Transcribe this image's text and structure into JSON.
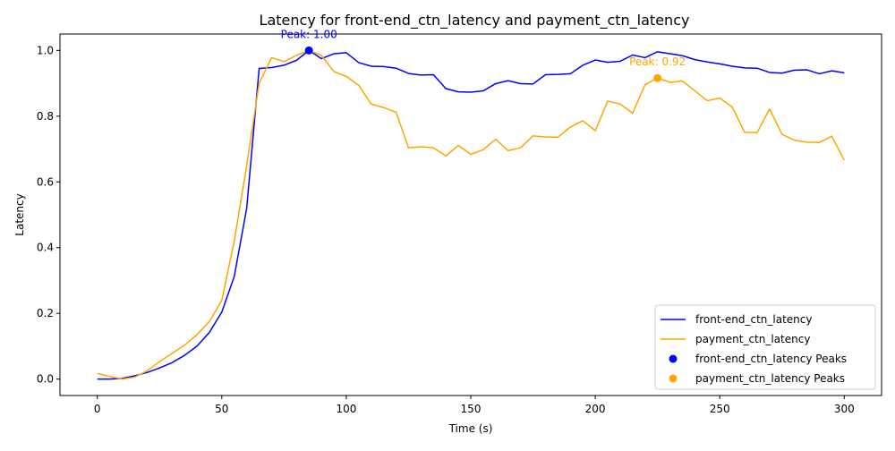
{
  "chart_data": {
    "type": "line",
    "title": "Latency for front-end_ctn_latency and payment_ctn_latency",
    "xlabel": "Time (s)",
    "ylabel": "Latency",
    "xlim": [
      -15,
      315
    ],
    "ylim": [
      -0.05,
      1.05
    ],
    "xticks": [
      0,
      50,
      100,
      150,
      200,
      250,
      300
    ],
    "yticks": [
      0.0,
      0.2,
      0.4,
      0.6,
      0.8,
      1.0
    ],
    "xtick_labels": [
      "0",
      "50",
      "100",
      "150",
      "200",
      "250",
      "300"
    ],
    "ytick_labels": [
      "0.0",
      "0.2",
      "0.4",
      "0.6",
      "0.8",
      "1.0"
    ],
    "legend_position": "lower-right",
    "x": [
      0,
      5,
      10,
      15,
      20,
      25,
      30,
      35,
      40,
      45,
      50,
      55,
      60,
      65,
      70,
      75,
      80,
      85,
      90,
      95,
      100,
      105,
      110,
      115,
      120,
      125,
      130,
      135,
      140,
      145,
      150,
      155,
      160,
      165,
      170,
      175,
      180,
      185,
      190,
      195,
      200,
      205,
      210,
      215,
      220,
      225,
      230,
      235,
      240,
      245,
      250,
      255,
      260,
      265,
      270,
      275,
      280,
      285,
      290,
      295,
      300
    ],
    "series": [
      {
        "name": "front-end_ctn_latency",
        "color": "#0000ff",
        "values": [
          0.0,
          0.0,
          0.002,
          0.01,
          0.02,
          0.034,
          0.05,
          0.072,
          0.1,
          0.142,
          0.204,
          0.312,
          0.52,
          0.945,
          0.948,
          0.955,
          0.97,
          1.0,
          0.975,
          0.99,
          0.993,
          0.963,
          0.952,
          0.951,
          0.946,
          0.93,
          0.925,
          0.926,
          0.884,
          0.874,
          0.873,
          0.877,
          0.899,
          0.908,
          0.899,
          0.898,
          0.926,
          0.927,
          0.929,
          0.955,
          0.971,
          0.964,
          0.967,
          0.986,
          0.978,
          0.996,
          0.99,
          0.984,
          0.972,
          0.965,
          0.959,
          0.952,
          0.947,
          0.946,
          0.933,
          0.931,
          0.94,
          0.941,
          0.929,
          0.938,
          0.932
        ]
      },
      {
        "name": "payment_ctn_latency",
        "color": "#ffa500",
        "values": [
          0.017,
          0.008,
          0.0,
          0.006,
          0.025,
          0.053,
          0.078,
          0.103,
          0.135,
          0.175,
          0.24,
          0.42,
          0.65,
          0.9,
          0.978,
          0.966,
          0.985,
          1.0,
          0.985,
          0.936,
          0.921,
          0.894,
          0.837,
          0.826,
          0.812,
          0.704,
          0.707,
          0.704,
          0.679,
          0.711,
          0.684,
          0.698,
          0.73,
          0.695,
          0.704,
          0.74,
          0.737,
          0.736,
          0.767,
          0.786,
          0.756,
          0.846,
          0.837,
          0.809,
          0.896,
          0.916,
          0.903,
          0.907,
          0.877,
          0.847,
          0.855,
          0.828,
          0.751,
          0.75,
          0.822,
          0.745,
          0.727,
          0.721,
          0.72,
          0.739,
          0.666
        ]
      }
    ],
    "peaks": [
      {
        "name": "front-end_ctn_latency Peaks",
        "color": "#0000ff",
        "x": 85,
        "y": 1.0,
        "label": "Peak: 1.00"
      },
      {
        "name": "payment_ctn_latency Peaks",
        "color": "#ffa500",
        "x": 225,
        "y": 0.916,
        "label": "Peak: 0.92"
      }
    ],
    "legend": [
      {
        "label": "front-end_ctn_latency",
        "kind": "line",
        "color": "#0000ff"
      },
      {
        "label": "payment_ctn_latency",
        "kind": "line",
        "color": "#ffa500"
      },
      {
        "label": "front-end_ctn_latency Peaks",
        "kind": "marker",
        "color": "#0000ff"
      },
      {
        "label": "payment_ctn_latency Peaks",
        "kind": "marker",
        "color": "#ffa500"
      }
    ]
  }
}
